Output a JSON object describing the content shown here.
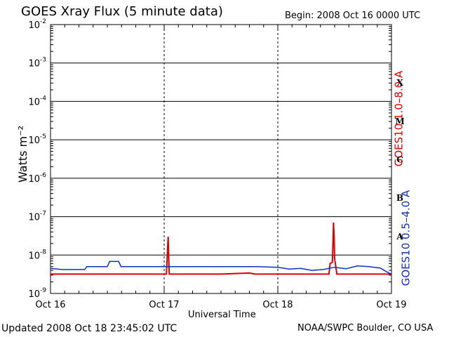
{
  "header": {
    "title": "GOES Xray Flux (5 minute data)",
    "begin": "Begin:  2008 Oct 16 0000 UTC"
  },
  "footer": {
    "updated": "Updated 2008 Oct 18 23:45:02 UTC",
    "credit": "NOAA/SWPC Boulder, CO USA"
  },
  "colors": {
    "long": "#e00000",
    "short": "#1030c0",
    "axes": "#000000"
  },
  "chart_data": {
    "type": "line",
    "xlabel": "Universal Time",
    "ylabel": "Watts m⁻²",
    "y_scale": "log",
    "ylim": [
      1e-09,
      0.01
    ],
    "xlim": [
      0,
      3
    ],
    "x_ticks": [
      {
        "x": 0,
        "label": "Oct 16"
      },
      {
        "x": 1,
        "label": "Oct 17"
      },
      {
        "x": 2,
        "label": "Oct 18"
      },
      {
        "x": 3,
        "label": "Oct 19"
      }
    ],
    "y_ticks": [
      {
        "exp": -2,
        "base": "10",
        "sup": "-2"
      },
      {
        "exp": -3,
        "base": "10",
        "sup": "-3"
      },
      {
        "exp": -4,
        "base": "10",
        "sup": "-4"
      },
      {
        "exp": -5,
        "base": "10",
        "sup": "-5"
      },
      {
        "exp": -6,
        "base": "10",
        "sup": "-6"
      },
      {
        "exp": -7,
        "base": "10",
        "sup": "-7"
      },
      {
        "exp": -8,
        "base": "10",
        "sup": "-8"
      },
      {
        "exp": -9,
        "base": "10",
        "sup": "-9"
      }
    ],
    "flare_classes": [
      {
        "label": "X",
        "exp": -3.5
      },
      {
        "label": "M",
        "exp": -4.5
      },
      {
        "label": "C",
        "exp": -5.5
      },
      {
        "label": "B",
        "exp": -6.5
      },
      {
        "label": "A",
        "exp": -7.5
      }
    ],
    "series": [
      {
        "name": "GOES10 1.0–8.0 A",
        "color": "#e00000",
        "points": [
          [
            0,
            3.2e-09
          ],
          [
            1.02,
            3.2e-09
          ],
          [
            1.03,
            1.5e-08
          ],
          [
            1.035,
            3e-08
          ],
          [
            1.04,
            8e-09
          ],
          [
            1.045,
            3.2e-09
          ],
          [
            1.5,
            3.2e-09
          ],
          [
            1.75,
            3.4e-09
          ],
          [
            1.8,
            3.2e-09
          ],
          [
            2.45,
            3.2e-09
          ],
          [
            2.46,
            6e-09
          ],
          [
            2.48,
            6.5e-09
          ],
          [
            2.49,
            7e-08
          ],
          [
            2.495,
            3e-08
          ],
          [
            2.5,
            8e-09
          ],
          [
            2.52,
            3.2e-09
          ],
          [
            3,
            3.2e-09
          ]
        ]
      },
      {
        "name": "GOES10 0.5–4.0 A",
        "color": "#1030c0",
        "points": [
          [
            0,
            4.5e-09
          ],
          [
            0.1,
            4.2e-09
          ],
          [
            0.3,
            4.2e-09
          ],
          [
            0.32,
            5e-09
          ],
          [
            0.5,
            5e-09
          ],
          [
            0.52,
            6.8e-09
          ],
          [
            0.6,
            6.8e-09
          ],
          [
            0.62,
            5e-09
          ],
          [
            0.98,
            5e-09
          ],
          [
            1.0,
            5e-09
          ],
          [
            1.2,
            5e-09
          ],
          [
            1.5,
            5e-09
          ],
          [
            1.8,
            5e-09
          ],
          [
            2.0,
            4.8e-09
          ],
          [
            2.1,
            4.3e-09
          ],
          [
            2.2,
            4.5e-09
          ],
          [
            2.3,
            4e-09
          ],
          [
            2.4,
            4.2e-09
          ],
          [
            2.5,
            4.8e-09
          ],
          [
            2.6,
            4.4e-09
          ],
          [
            2.7,
            5.2e-09
          ],
          [
            2.8,
            5e-09
          ],
          [
            2.9,
            4.6e-09
          ],
          [
            2.97,
            3.5e-09
          ],
          [
            3,
            3.2e-09
          ]
        ]
      }
    ]
  }
}
